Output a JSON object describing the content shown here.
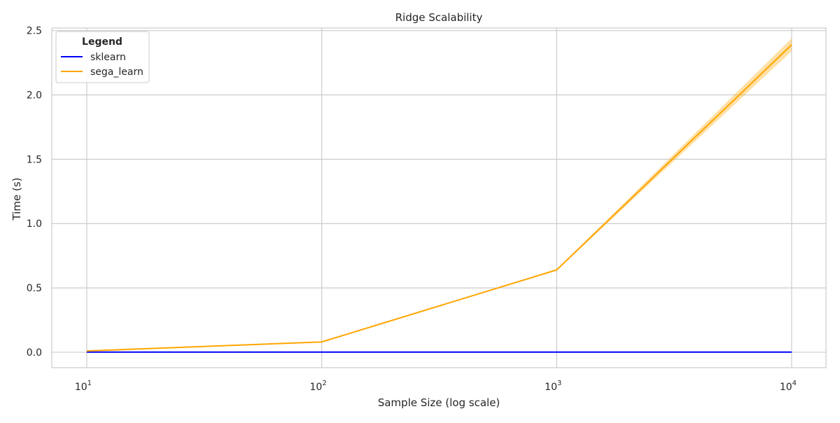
{
  "chart_data": {
    "type": "line",
    "title": "Ridge Scalability",
    "xlabel": "Sample Size (log scale)",
    "ylabel": "Time (s)",
    "xscale": "log",
    "xlim": [
      7.1,
      14000
    ],
    "ylim": [
      -0.12,
      2.52
    ],
    "x": [
      10,
      100,
      1000,
      10000
    ],
    "x_ticks": [
      {
        "value": 10,
        "base": "10",
        "exp": "1"
      },
      {
        "value": 100,
        "base": "10",
        "exp": "2"
      },
      {
        "value": 1000,
        "base": "10",
        "exp": "3"
      },
      {
        "value": 10000,
        "base": "10",
        "exp": "4"
      }
    ],
    "y_ticks": [
      {
        "value": 0.0,
        "label": "0.0"
      },
      {
        "value": 0.5,
        "label": "0.5"
      },
      {
        "value": 1.0,
        "label": "1.0"
      },
      {
        "value": 1.5,
        "label": "1.5"
      },
      {
        "value": 2.0,
        "label": "2.0"
      },
      {
        "value": 2.5,
        "label": "2.5"
      }
    ],
    "grid": true,
    "legend": {
      "title": "Legend",
      "placement": "top-left"
    },
    "series": [
      {
        "name": "sklearn",
        "color": "#0000ff",
        "values": [
          0.001,
          0.001,
          0.001,
          0.001
        ],
        "band_low": [
          0.001,
          0.001,
          0.001,
          0.001
        ],
        "band_high": [
          0.001,
          0.001,
          0.001,
          0.001
        ]
      },
      {
        "name": "sega_learn",
        "color": "#ffa500",
        "values": [
          0.01,
          0.08,
          0.64,
          2.39
        ],
        "band_low": [
          0.01,
          0.08,
          0.635,
          2.34
        ],
        "band_high": [
          0.01,
          0.08,
          0.645,
          2.44
        ]
      }
    ]
  }
}
